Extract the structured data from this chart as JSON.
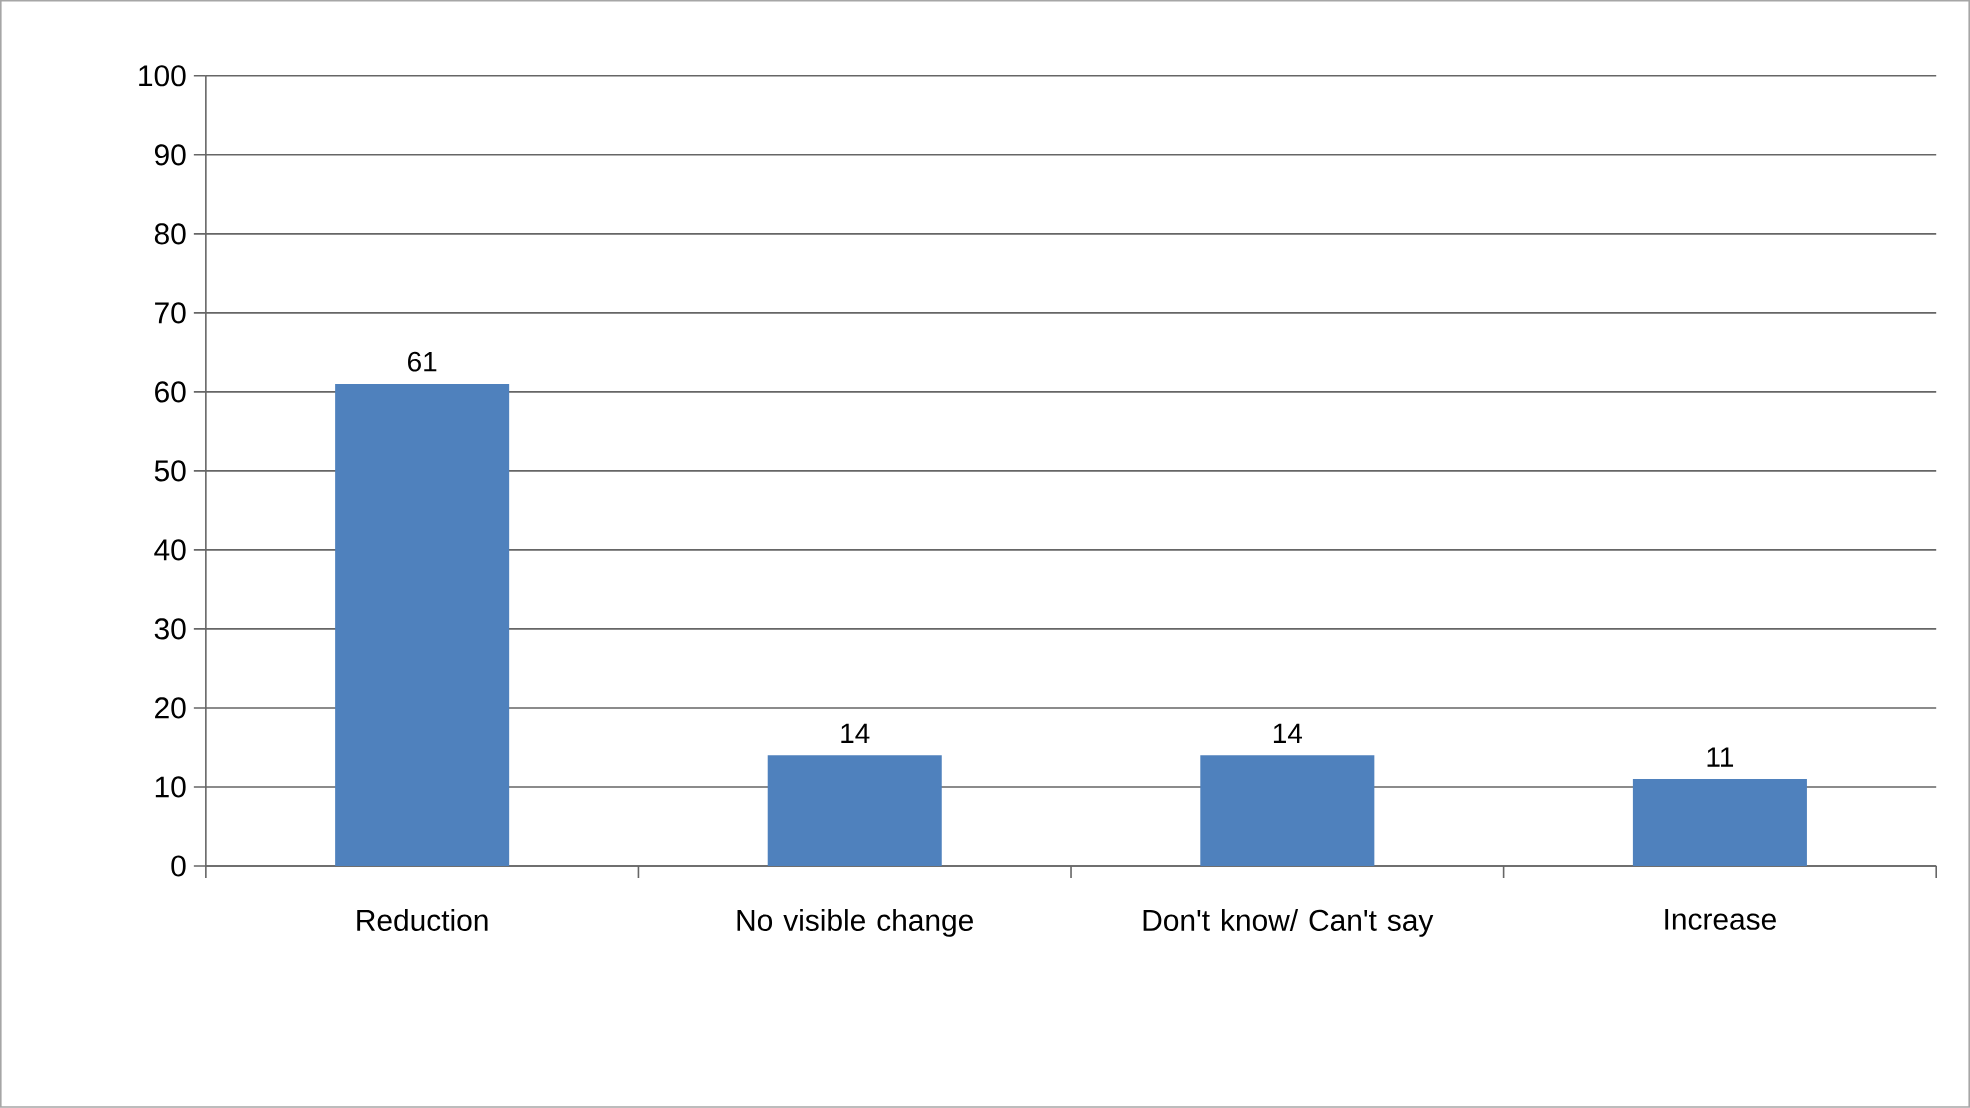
{
  "chart_data": {
    "type": "bar",
    "categories": [
      "Reduction",
      "No visible change",
      "Don't know/ Can't say",
      "Increase"
    ],
    "values": [
      61,
      14,
      14,
      11
    ],
    "color": "#4f81bd",
    "ylim": [
      0,
      100
    ],
    "yticks": [
      0,
      10,
      20,
      30,
      40,
      50,
      60,
      70,
      80,
      90,
      100
    ],
    "grid": "y",
    "data_labels": true
  }
}
